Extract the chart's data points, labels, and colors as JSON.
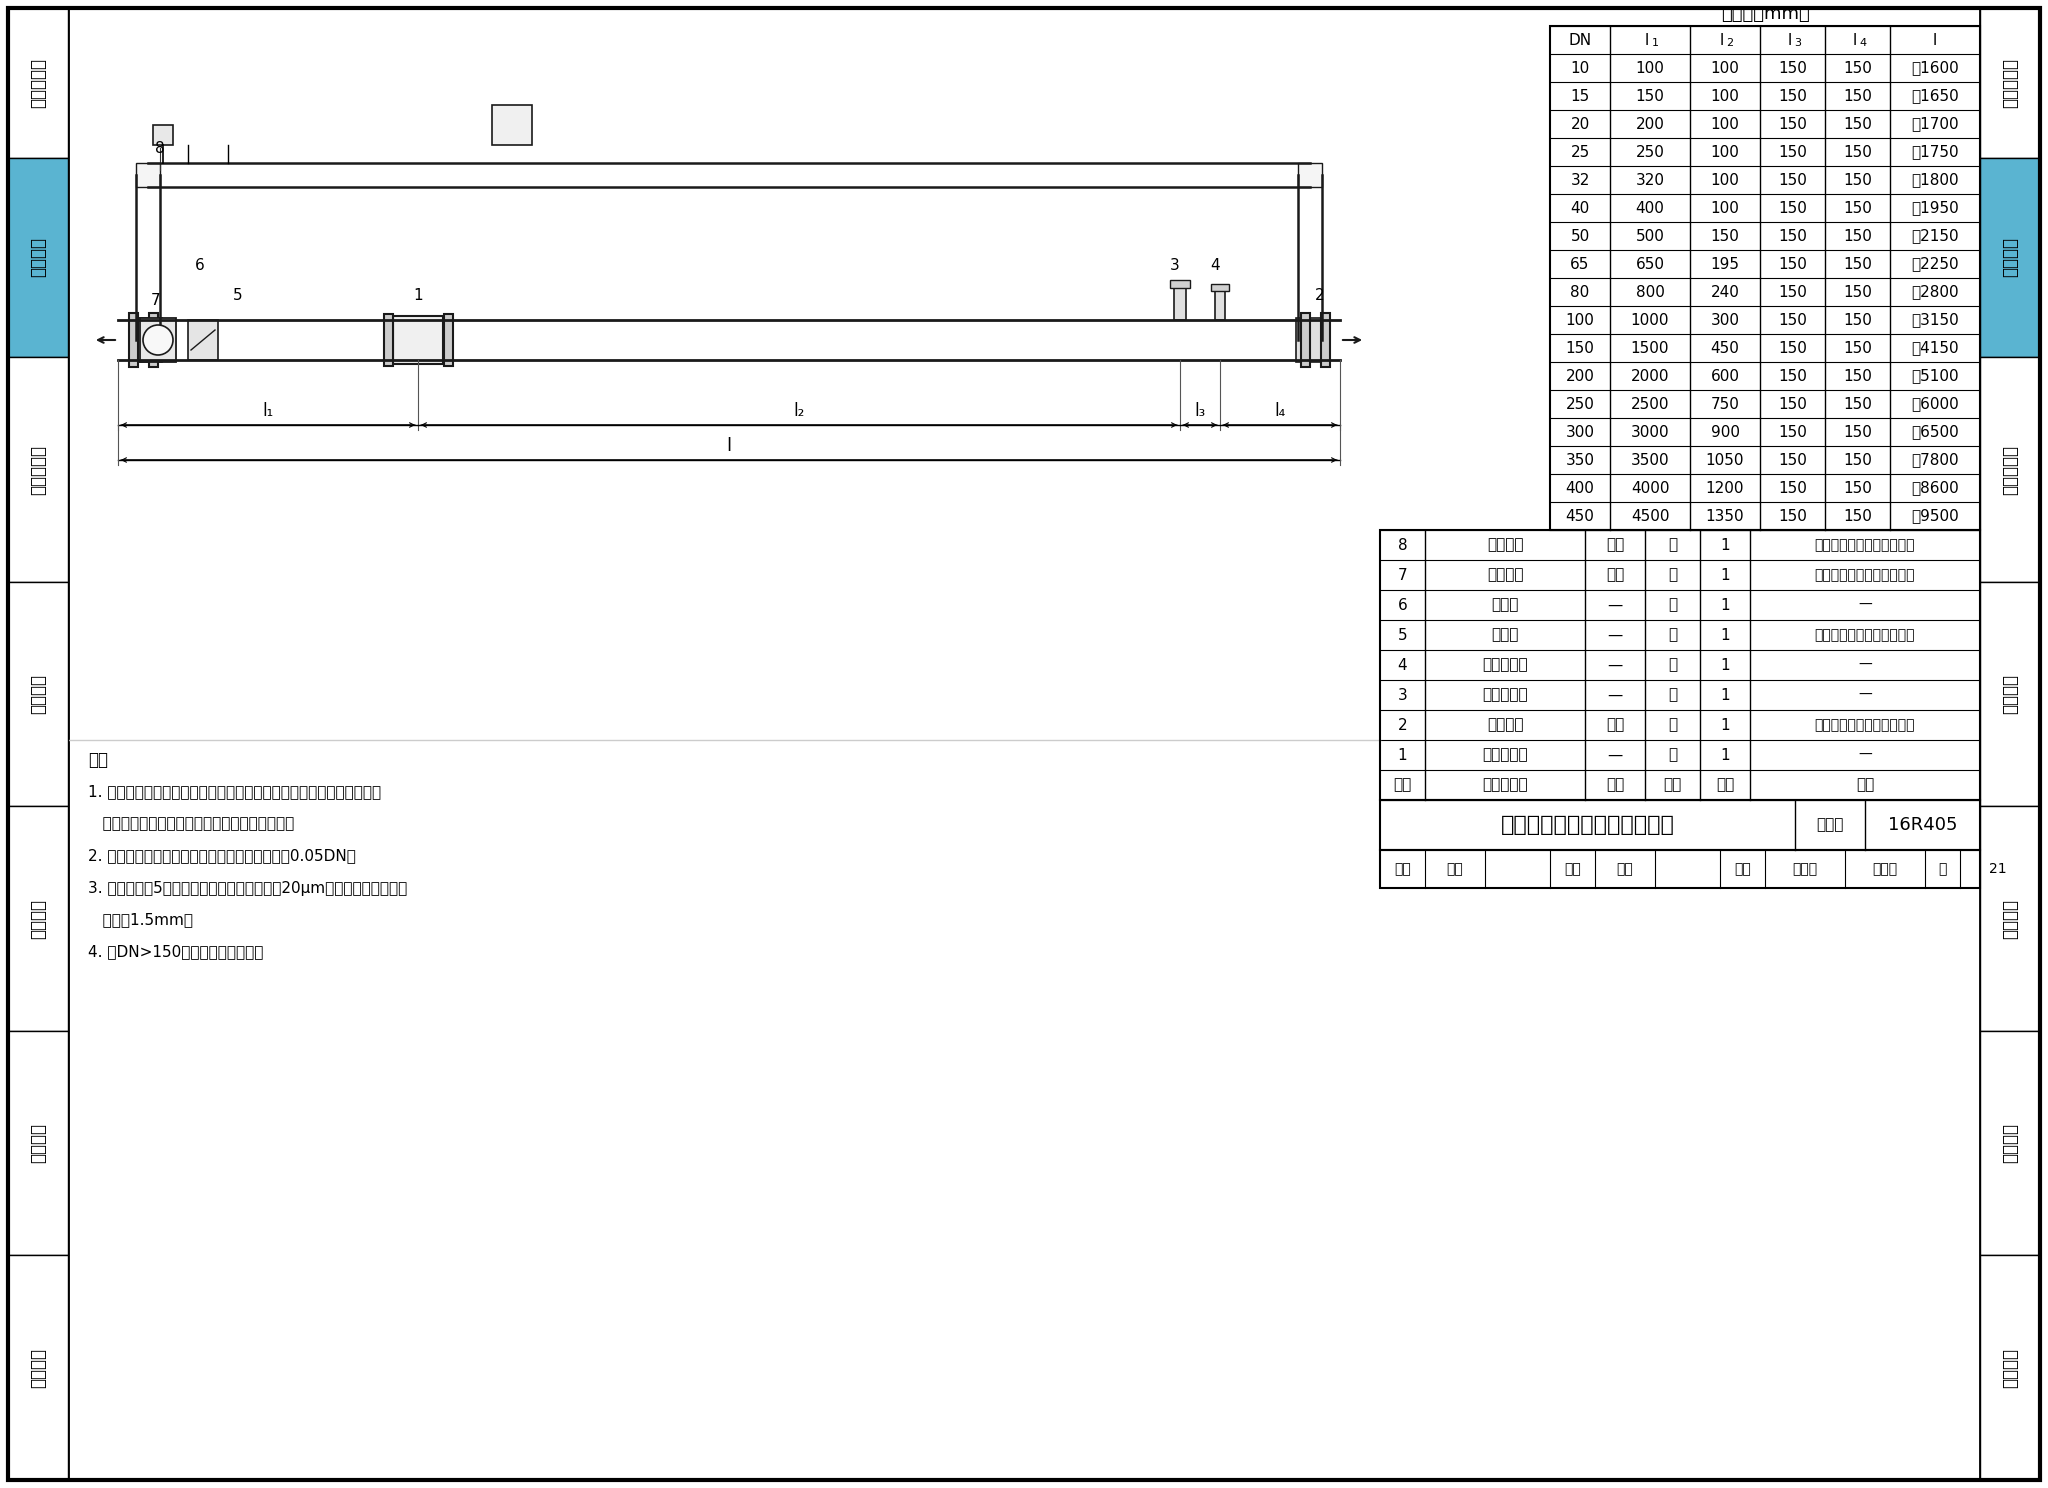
{
  "page_bg": "#ffffff",
  "sidebar_bg": "#5ab4d1",
  "sidebar_labels": [
    "编制总说明",
    "流量仪表",
    "热冷量仪表",
    "温度仪表",
    "压力仪表",
    "湿度仪表",
    "液位仪表"
  ],
  "sidebar_highlight": 1,
  "table_title": "尺寸表（mm）",
  "table_headers": [
    "DN",
    "l 1",
    "l 2",
    "l 3",
    "l 4",
    "l"
  ],
  "table_data": [
    [
      "10",
      "100",
      "100",
      "150",
      "150",
      "～1600"
    ],
    [
      "15",
      "150",
      "100",
      "150",
      "150",
      "～1650"
    ],
    [
      "20",
      "200",
      "100",
      "150",
      "150",
      "～1700"
    ],
    [
      "25",
      "250",
      "100",
      "150",
      "150",
      "～1750"
    ],
    [
      "32",
      "320",
      "100",
      "150",
      "150",
      "～1800"
    ],
    [
      "40",
      "400",
      "100",
      "150",
      "150",
      "～1950"
    ],
    [
      "50",
      "500",
      "150",
      "150",
      "150",
      "～2150"
    ],
    [
      "65",
      "650",
      "195",
      "150",
      "150",
      "～2250"
    ],
    [
      "80",
      "800",
      "240",
      "150",
      "150",
      "～2800"
    ],
    [
      "100",
      "1000",
      "300",
      "150",
      "150",
      "～3150"
    ],
    [
      "150",
      "1500",
      "450",
      "150",
      "150",
      "～4150"
    ],
    [
      "200",
      "2000",
      "600",
      "150",
      "150",
      "～5100"
    ],
    [
      "250",
      "2500",
      "750",
      "150",
      "150",
      "～6000"
    ],
    [
      "300",
      "3000",
      "900",
      "150",
      "150",
      "～6500"
    ],
    [
      "350",
      "3500",
      "1050",
      "150",
      "150",
      "～7800"
    ],
    [
      "400",
      "4000",
      "1200",
      "150",
      "150",
      "～8600"
    ],
    [
      "450",
      "4500",
      "1350",
      "150",
      "150",
      "～9500"
    ]
  ],
  "parts_data": [
    [
      "8",
      "法兰球阀",
      "碳钢",
      "个",
      "1",
      "公称压力和直径由设计确定"
    ],
    [
      "7",
      "法兰球阀",
      "碳钢",
      "个",
      "1",
      "公称压力和直径由设计确定"
    ],
    [
      "6",
      "压差表",
      "—",
      "个",
      "1",
      "—"
    ],
    [
      "5",
      "过滤器",
      "—",
      "个",
      "1",
      "公称压力和直径由设计确定"
    ],
    [
      "4",
      "压力传感器",
      "—",
      "个",
      "1",
      "—"
    ],
    [
      "3",
      "温度传感器",
      "—",
      "个",
      "1",
      "—"
    ],
    [
      "2",
      "法兰球阀",
      "碳钢",
      "个",
      "1",
      "公称压力和直径由设计确定"
    ],
    [
      "1",
      "电磁流量计",
      "—",
      "个",
      "1",
      "—"
    ]
  ],
  "drawing_title": "电磁流量计水平管道上安装图",
  "atlas_label": "图集号",
  "atlas_no": "16R405",
  "page_label": "页",
  "page_no": "21",
  "notes_title": "注：",
  "notes": [
    "1. 避开强电力设备、高频设备、强电源开关设备；避开高温热源和高辐",
    "   射热源的影响；避开强振动场所和强腐蚀环境。",
    "2. 上下游配管应与流量计同心，同轴偏差不大于0.05DN。",
    "3. 过滤器（件5）用于气体管道，过滤精度为20μm；用于水管道，过滤",
    "   精度为1.5mm。",
    "4. 当DN>150时，流量计设支架。"
  ]
}
